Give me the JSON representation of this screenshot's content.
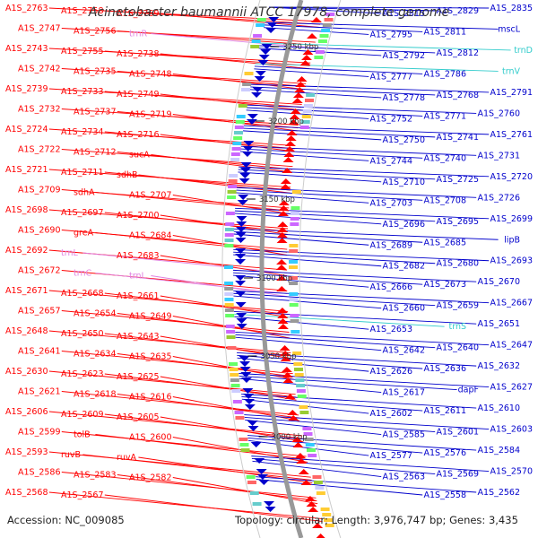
{
  "title": "Acinetobacter baumannii ATCC 17978, complete genome",
  "accession_text": "Accession: NC_009085",
  "summary_text": "Topology: circular; Length: 3,976,747 bp; Genes: 3,435",
  "colors": {
    "forward": "#ff0000",
    "reverse": "#0000cc",
    "rna_forward": "#e080e0",
    "rna_reverse": "#33cccc",
    "backbone": "#888888"
  },
  "scale_marks": [
    {
      "label": "3250 kbp"
    },
    {
      "label": "3200 kbp"
    },
    {
      "label": "3150 kbp"
    },
    {
      "label": "3100 kbp"
    },
    {
      "label": "3050 kbp"
    },
    {
      "label": "3000 kbp"
    }
  ],
  "left_labels": [
    {
      "text": "A1S_2763",
      "kind": "gene"
    },
    {
      "text": "A1S_2758",
      "kind": "gene"
    },
    {
      "text": "A1S_2769",
      "kind": "gene"
    },
    {
      "text": "A1S_2747",
      "kind": "gene"
    },
    {
      "text": "A1S_2756",
      "kind": "gene"
    },
    {
      "text": "trnR",
      "kind": "rna"
    },
    {
      "text": "A1S_2743",
      "kind": "gene"
    },
    {
      "text": "A1S_2755",
      "kind": "gene"
    },
    {
      "text": "A1S_2738",
      "kind": "gene"
    },
    {
      "text": "A1S_2742",
      "kind": "gene"
    },
    {
      "text": "A1S_2735",
      "kind": "gene"
    },
    {
      "text": "A1S_2748",
      "kind": "gene"
    },
    {
      "text": "A1S_2739",
      "kind": "gene"
    },
    {
      "text": "A1S_2733",
      "kind": "gene"
    },
    {
      "text": "A1S_2749",
      "kind": "gene"
    },
    {
      "text": "A1S_2732",
      "kind": "gene"
    },
    {
      "text": "A1S_2737",
      "kind": "gene"
    },
    {
      "text": "A1S_2719",
      "kind": "gene"
    },
    {
      "text": "A1S_2724",
      "kind": "gene"
    },
    {
      "text": "A1S_2734",
      "kind": "gene"
    },
    {
      "text": "A1S_2716",
      "kind": "gene"
    },
    {
      "text": "A1S_2722",
      "kind": "gene"
    },
    {
      "text": "A1S_2712",
      "kind": "gene"
    },
    {
      "text": "sucA",
      "kind": "gene"
    },
    {
      "text": "A1S_2721",
      "kind": "gene"
    },
    {
      "text": "A1S_2711",
      "kind": "gene"
    },
    {
      "text": "sdhB",
      "kind": "gene"
    },
    {
      "text": "A1S_2709",
      "kind": "gene"
    },
    {
      "text": "sdhA",
      "kind": "gene"
    },
    {
      "text": "A1S_2707",
      "kind": "gene"
    },
    {
      "text": "A1S_2698",
      "kind": "gene"
    },
    {
      "text": "A1S_2697",
      "kind": "gene"
    },
    {
      "text": "A1S_2700",
      "kind": "gene"
    },
    {
      "text": "A1S_2690",
      "kind": "gene"
    },
    {
      "text": "greA",
      "kind": "gene"
    },
    {
      "text": "A1S_2684",
      "kind": "gene"
    },
    {
      "text": "A1S_2692",
      "kind": "gene"
    },
    {
      "text": "trnL",
      "kind": "rna"
    },
    {
      "text": "A1S_2683",
      "kind": "gene"
    },
    {
      "text": "A1S_2672",
      "kind": "gene"
    },
    {
      "text": "trnC",
      "kind": "rna"
    },
    {
      "text": "trnL",
      "kind": "rna"
    },
    {
      "text": "A1S_2671",
      "kind": "gene"
    },
    {
      "text": "A1S_2668",
      "kind": "gene"
    },
    {
      "text": "A1S_2661",
      "kind": "gene"
    },
    {
      "text": "A1S_2657",
      "kind": "gene"
    },
    {
      "text": "A1S_2654",
      "kind": "gene"
    },
    {
      "text": "A1S_2649",
      "kind": "gene"
    },
    {
      "text": "A1S_2648",
      "kind": "gene"
    },
    {
      "text": "A1S_2650",
      "kind": "gene"
    },
    {
      "text": "A1S_2643",
      "kind": "gene"
    },
    {
      "text": "A1S_2641",
      "kind": "gene"
    },
    {
      "text": "A1S_2634",
      "kind": "gene"
    },
    {
      "text": "A1S_2635",
      "kind": "gene"
    },
    {
      "text": "A1S_2630",
      "kind": "gene"
    },
    {
      "text": "A1S_2623",
      "kind": "gene"
    },
    {
      "text": "A1S_2625",
      "kind": "gene"
    },
    {
      "text": "A1S_2621",
      "kind": "gene"
    },
    {
      "text": "A1S_2618",
      "kind": "gene"
    },
    {
      "text": "A1S_2616",
      "kind": "gene"
    },
    {
      "text": "A1S_2606",
      "kind": "gene"
    },
    {
      "text": "A1S_2609",
      "kind": "gene"
    },
    {
      "text": "A1S_2605",
      "kind": "gene"
    },
    {
      "text": "A1S_2599",
      "kind": "gene"
    },
    {
      "text": "tolB",
      "kind": "gene"
    },
    {
      "text": "A1S_2600",
      "kind": "gene"
    },
    {
      "text": "A1S_2593",
      "kind": "gene"
    },
    {
      "text": "ruvB",
      "kind": "gene"
    },
    {
      "text": "ruvA",
      "kind": "gene"
    },
    {
      "text": "A1S_2586",
      "kind": "gene"
    },
    {
      "text": "A1S_2583",
      "kind": "gene"
    },
    {
      "text": "A1S_2582",
      "kind": "gene"
    },
    {
      "text": "A1S_2568",
      "kind": "gene"
    },
    {
      "text": "A1S_2567",
      "kind": "gene"
    }
  ],
  "right_labels": [
    {
      "text": "A1S_2835",
      "kind": "gene"
    },
    {
      "text": "A1S_2829",
      "kind": "gene"
    },
    {
      "text": "A1S_2815",
      "kind": "gene"
    },
    {
      "text": "mscL",
      "kind": "gene"
    },
    {
      "text": "A1S_2811",
      "kind": "gene"
    },
    {
      "text": "A1S_2795",
      "kind": "gene"
    },
    {
      "text": "trnD",
      "kind": "rna"
    },
    {
      "text": "A1S_2812",
      "kind": "gene"
    },
    {
      "text": "A1S_2792",
      "kind": "gene"
    },
    {
      "text": "trnV",
      "kind": "rna"
    },
    {
      "text": "A1S_2786",
      "kind": "gene"
    },
    {
      "text": "A1S_2777",
      "kind": "gene"
    },
    {
      "text": "A1S_2791",
      "kind": "gene"
    },
    {
      "text": "A1S_2768",
      "kind": "gene"
    },
    {
      "text": "A1S_2778",
      "kind": "gene"
    },
    {
      "text": "A1S_2760",
      "kind": "gene"
    },
    {
      "text": "A1S_2771",
      "kind": "gene"
    },
    {
      "text": "A1S_2752",
      "kind": "gene"
    },
    {
      "text": "A1S_2761",
      "kind": "gene"
    },
    {
      "text": "A1S_2741",
      "kind": "gene"
    },
    {
      "text": "A1S_2750",
      "kind": "gene"
    },
    {
      "text": "A1S_2731",
      "kind": "gene"
    },
    {
      "text": "A1S_2740",
      "kind": "gene"
    },
    {
      "text": "A1S_2744",
      "kind": "gene"
    },
    {
      "text": "A1S_2720",
      "kind": "gene"
    },
    {
      "text": "A1S_2725",
      "kind": "gene"
    },
    {
      "text": "A1S_2710",
      "kind": "gene"
    },
    {
      "text": "A1S_2726",
      "kind": "gene"
    },
    {
      "text": "A1S_2708",
      "kind": "gene"
    },
    {
      "text": "A1S_2703",
      "kind": "gene"
    },
    {
      "text": "A1S_2699",
      "kind": "gene"
    },
    {
      "text": "A1S_2695",
      "kind": "gene"
    },
    {
      "text": "A1S_2696",
      "kind": "gene"
    },
    {
      "text": "lipB",
      "kind": "gene"
    },
    {
      "text": "A1S_2685",
      "kind": "gene"
    },
    {
      "text": "A1S_2689",
      "kind": "gene"
    },
    {
      "text": "A1S_2693",
      "kind": "gene"
    },
    {
      "text": "A1S_2680",
      "kind": "gene"
    },
    {
      "text": "A1S_2682",
      "kind": "gene"
    },
    {
      "text": "A1S_2670",
      "kind": "gene"
    },
    {
      "text": "A1S_2673",
      "kind": "gene"
    },
    {
      "text": "A1S_2666",
      "kind": "gene"
    },
    {
      "text": "A1S_2667",
      "kind": "gene"
    },
    {
      "text": "A1S_2659",
      "kind": "gene"
    },
    {
      "text": "A1S_2660",
      "kind": "gene"
    },
    {
      "text": "A1S_2651",
      "kind": "gene"
    },
    {
      "text": "trnS",
      "kind": "rna"
    },
    {
      "text": "A1S_2653",
      "kind": "gene"
    },
    {
      "text": "A1S_2647",
      "kind": "gene"
    },
    {
      "text": "A1S_2640",
      "kind": "gene"
    },
    {
      "text": "A1S_2642",
      "kind": "gene"
    },
    {
      "text": "A1S_2632",
      "kind": "gene"
    },
    {
      "text": "A1S_2636",
      "kind": "gene"
    },
    {
      "text": "A1S_2626",
      "kind": "gene"
    },
    {
      "text": "A1S_2627",
      "kind": "gene"
    },
    {
      "text": "dapF",
      "kind": "gene"
    },
    {
      "text": "A1S_2617",
      "kind": "gene"
    },
    {
      "text": "A1S_2610",
      "kind": "gene"
    },
    {
      "text": "A1S_2611",
      "kind": "gene"
    },
    {
      "text": "A1S_2602",
      "kind": "gene"
    },
    {
      "text": "A1S_2603",
      "kind": "gene"
    },
    {
      "text": "A1S_2601",
      "kind": "gene"
    },
    {
      "text": "A1S_2585",
      "kind": "gene"
    },
    {
      "text": "A1S_2584",
      "kind": "gene"
    },
    {
      "text": "A1S_2576",
      "kind": "gene"
    },
    {
      "text": "A1S_2577",
      "kind": "gene"
    },
    {
      "text": "A1S_2570",
      "kind": "gene"
    },
    {
      "text": "A1S_2569",
      "kind": "gene"
    },
    {
      "text": "A1S_2563",
      "kind": "gene"
    },
    {
      "text": "A1S_2562",
      "kind": "gene"
    },
    {
      "text": "A1S_2558",
      "kind": "gene"
    }
  ]
}
